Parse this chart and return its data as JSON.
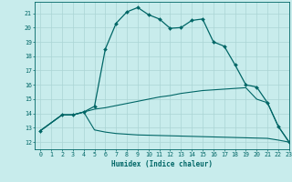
{
  "xlabel": "Humidex (Indice chaleur)",
  "background_color": "#c8ecec",
  "grid_color": "#aad4d4",
  "line_color": "#006666",
  "xlim": [
    -0.5,
    23
  ],
  "ylim": [
    11.5,
    21.8
  ],
  "xticks": [
    0,
    1,
    2,
    3,
    4,
    5,
    6,
    7,
    8,
    9,
    10,
    11,
    12,
    13,
    14,
    15,
    16,
    17,
    18,
    19,
    20,
    21,
    22,
    23
  ],
  "yticks": [
    12,
    13,
    14,
    15,
    16,
    17,
    18,
    19,
    20,
    21
  ],
  "line1_x": [
    0,
    2,
    3,
    4,
    5,
    6,
    7,
    8,
    9,
    10,
    11,
    12,
    13,
    14,
    15,
    16,
    17,
    18,
    19,
    20,
    21,
    22,
    23
  ],
  "line1_y": [
    12.8,
    13.9,
    13.9,
    14.1,
    14.5,
    18.5,
    20.3,
    21.1,
    21.4,
    20.9,
    20.6,
    19.95,
    20.0,
    20.5,
    20.6,
    19.0,
    18.7,
    17.4,
    16.0,
    15.85,
    14.75,
    13.1,
    12.0
  ],
  "line2_x": [
    0,
    2,
    3,
    4,
    5,
    6,
    7,
    8,
    9,
    10,
    11,
    12,
    13,
    14,
    15,
    16,
    17,
    18,
    19,
    20,
    21,
    22,
    23
  ],
  "line2_y": [
    12.8,
    13.9,
    13.9,
    14.1,
    14.3,
    14.4,
    14.55,
    14.7,
    14.85,
    15.0,
    15.15,
    15.25,
    15.4,
    15.5,
    15.6,
    15.65,
    15.7,
    15.75,
    15.8,
    15.0,
    14.75,
    13.1,
    12.0
  ],
  "line3_x": [
    0,
    2,
    3,
    4,
    5,
    6,
    7,
    8,
    9,
    10,
    11,
    12,
    13,
    14,
    15,
    16,
    17,
    18,
    19,
    20,
    21,
    22,
    23
  ],
  "line3_y": [
    12.8,
    13.9,
    13.9,
    14.1,
    12.85,
    12.7,
    12.6,
    12.55,
    12.5,
    12.48,
    12.46,
    12.44,
    12.42,
    12.4,
    12.38,
    12.36,
    12.34,
    12.32,
    12.3,
    12.28,
    12.26,
    12.14,
    12.0
  ]
}
